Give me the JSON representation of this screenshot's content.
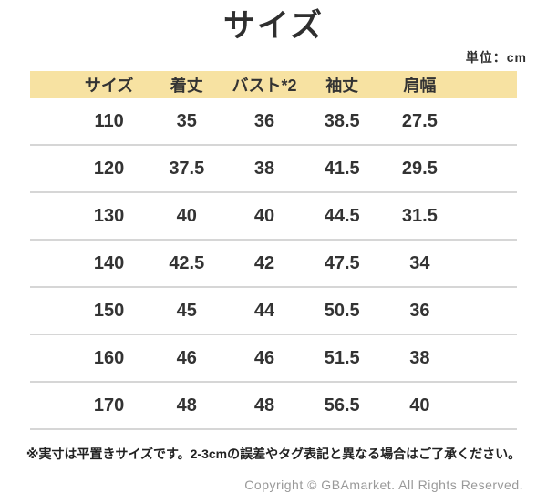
{
  "page": {
    "title": "サイズ",
    "unit_label": "単位：cm",
    "note": "※実寸は平置きサイズです。2-3cmの誤差やタグ表記と異なる場合はご了承ください。",
    "copyright": "Copyright © GBAmarket. All Rights Reserved."
  },
  "colors": {
    "header_band": "#F7E2A2",
    "text": "#333333",
    "divider": "#d6d6d6",
    "copyright_text": "#999999"
  },
  "chart_data": {
    "type": "table",
    "title": "サイズ",
    "unit": "cm",
    "columns": [
      "サイズ",
      "着丈",
      "バスト*2",
      "袖丈",
      "肩幅"
    ],
    "rows": [
      [
        "110",
        "35",
        "36",
        "38.5",
        "27.5"
      ],
      [
        "120",
        "37.5",
        "38",
        "41.5",
        "29.5"
      ],
      [
        "130",
        "40",
        "40",
        "44.5",
        "31.5"
      ],
      [
        "140",
        "42.5",
        "42",
        "47.5",
        "34"
      ],
      [
        "150",
        "45",
        "44",
        "50.5",
        "36"
      ],
      [
        "160",
        "46",
        "46",
        "51.5",
        "38"
      ],
      [
        "170",
        "48",
        "48",
        "56.5",
        "40"
      ]
    ]
  }
}
